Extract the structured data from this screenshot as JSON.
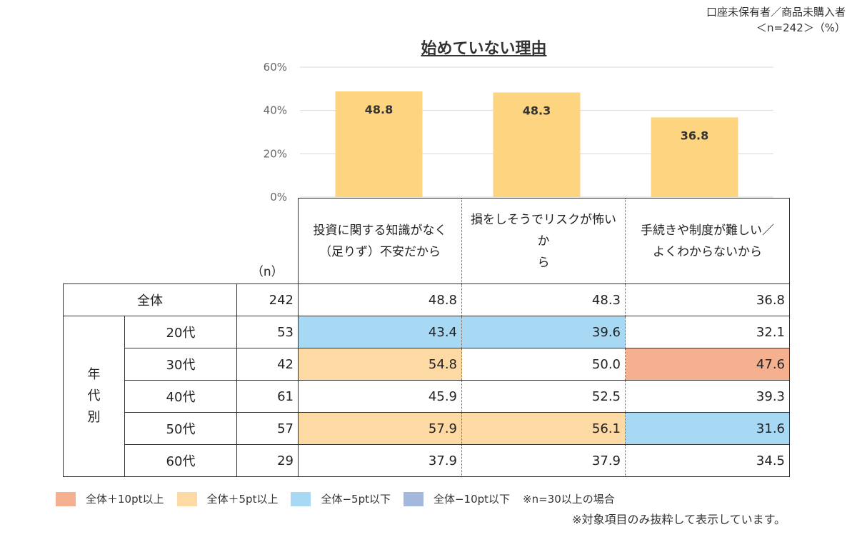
{
  "note_line1": "口座未保有者／商品未購入者",
  "note_line2": "＜n=242＞（%）",
  "chart_data": {
    "type": "bar",
    "title": "始めていない理由",
    "categories": [
      "投資に関する知識がなく（足りず）不安だから",
      "損をしそうでリスクが怖いから",
      "手続きや制度が難しい／よくわからないから"
    ],
    "values": [
      48.8,
      48.3,
      36.8
    ],
    "value_labels": [
      "48.8",
      "48.3",
      "36.8"
    ],
    "ylim": [
      0,
      60
    ],
    "yticks": [
      0,
      20,
      40,
      60
    ],
    "ytick_labels": [
      "0%",
      "20%",
      "40%",
      "60%"
    ],
    "grid": true,
    "bar_color": "#FDD581"
  },
  "table": {
    "n_header": "（n）",
    "col_headers": [
      [
        "投資に関する知識がなく",
        "（足りず）不安だから"
      ],
      [
        "損をしそうでリスクが怖いか",
        "ら"
      ],
      [
        "手続きや制度が難しい／",
        "よくわからないから"
      ]
    ],
    "overall": {
      "label": "全体",
      "n": "242",
      "values": [
        "48.8",
        "48.3",
        "36.8"
      ]
    },
    "group_label": [
      "年",
      "代",
      "別"
    ],
    "rows": [
      {
        "label": "20代",
        "n": "53",
        "values": [
          "43.4",
          "39.6",
          "32.1"
        ],
        "fills": [
          "#A7D9F5",
          "#A7D9F5",
          ""
        ]
      },
      {
        "label": "30代",
        "n": "42",
        "values": [
          "54.8",
          "50.0",
          "47.6"
        ],
        "fills": [
          "#FDD9A4",
          "",
          "#F5B08F"
        ]
      },
      {
        "label": "40代",
        "n": "61",
        "values": [
          "45.9",
          "52.5",
          "39.3"
        ],
        "fills": [
          "",
          "",
          ""
        ]
      },
      {
        "label": "50代",
        "n": "57",
        "values": [
          "57.9",
          "56.1",
          "31.6"
        ],
        "fills": [
          "#FDD9A4",
          "#FDD9A4",
          "#A7D9F5"
        ]
      },
      {
        "label": "60代",
        "n": "29",
        "values": [
          "37.9",
          "37.9",
          "34.5"
        ],
        "fills": [
          "",
          "",
          ""
        ]
      }
    ]
  },
  "legend": [
    {
      "label": "全体＋10pt以上",
      "color": "#F5B08F"
    },
    {
      "label": "全体＋5pt以上",
      "color": "#FDD9A4"
    },
    {
      "label": "全体−5pt以下",
      "color": "#A7D9F5"
    },
    {
      "label": "全体−10pt以下",
      "color": "#A4B8DE"
    }
  ],
  "legend_note": "※n=30以上の場合",
  "footnote": "※対象項目のみ抜粋して表示しています。"
}
